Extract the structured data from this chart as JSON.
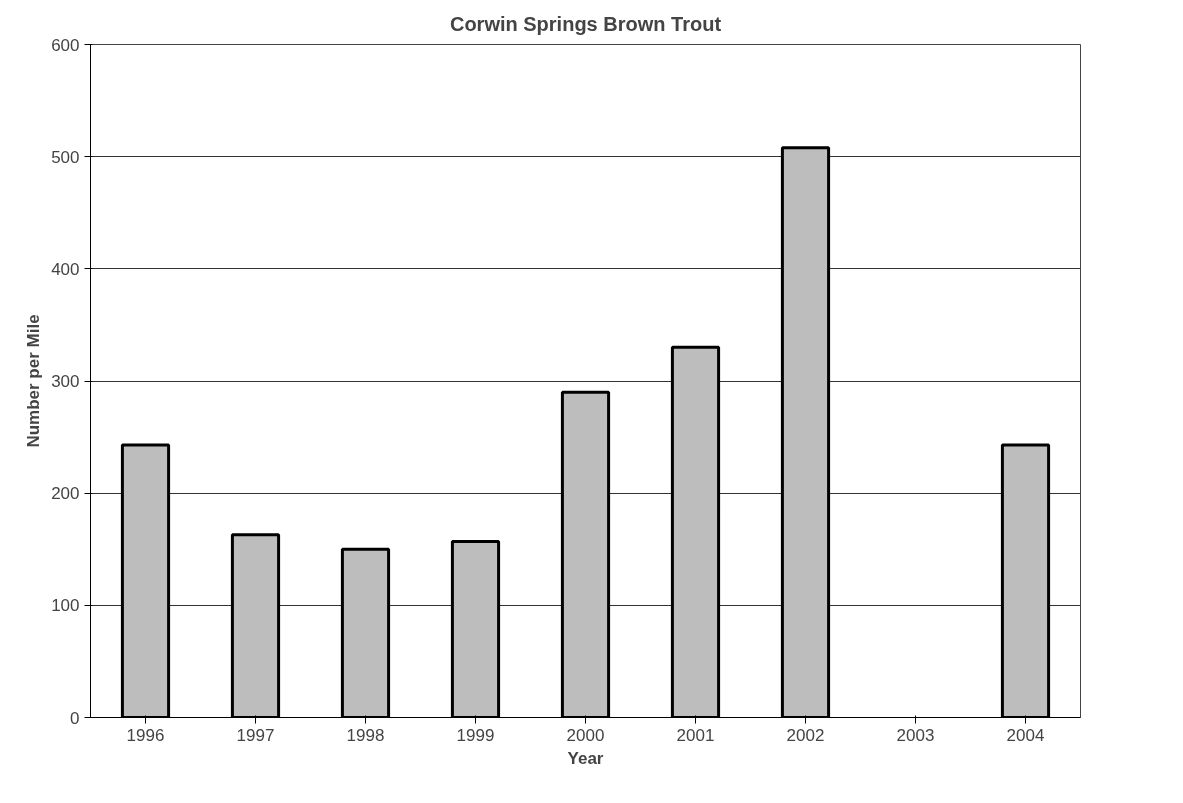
{
  "chart_data": {
    "type": "bar",
    "title": "Corwin Springs Brown Trout",
    "xlabel": "Year",
    "ylabel": "Number per Mile",
    "categories": [
      "1996",
      "1997",
      "1998",
      "1999",
      "2000",
      "2001",
      "2002",
      "2003",
      "2004"
    ],
    "values": [
      243,
      163,
      150,
      157,
      290,
      330,
      508,
      null,
      243
    ],
    "color": "#bdbdbd",
    "ylim": [
      0,
      600
    ],
    "yticks": [
      0,
      100,
      200,
      300,
      400,
      500,
      600
    ],
    "grid": "y"
  }
}
